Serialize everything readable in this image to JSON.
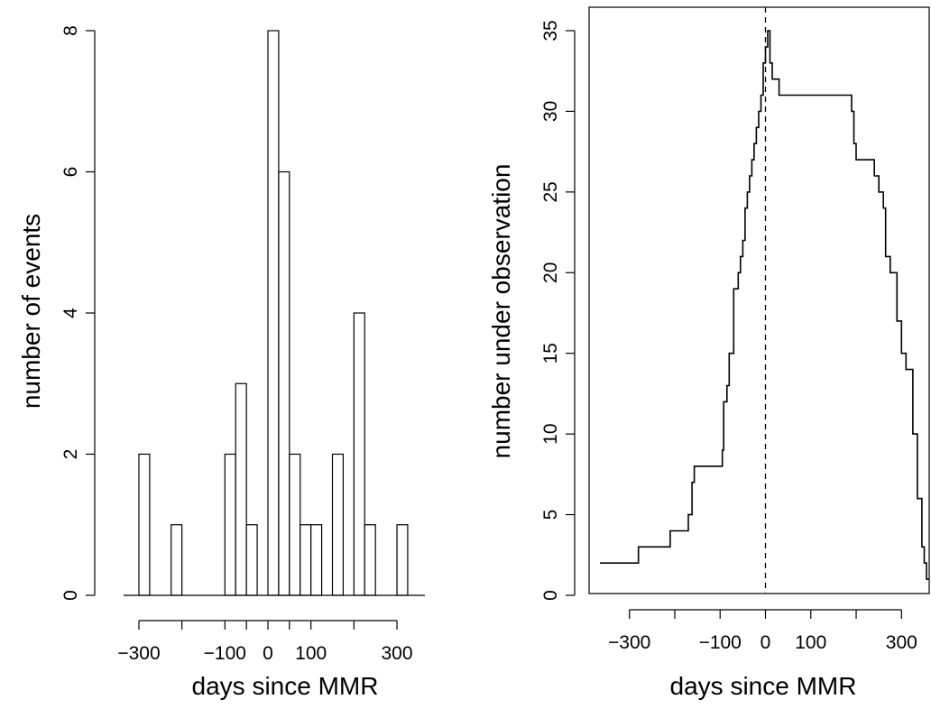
{
  "chart_data": [
    {
      "type": "bar",
      "title": "",
      "xlabel": "days since MMR",
      "ylabel": "number of events",
      "xlim": [
        -365,
        365
      ],
      "ylim": [
        0,
        8
      ],
      "xticks": [
        -300,
        -100,
        0,
        100,
        300
      ],
      "xtick_labels": [
        "−300",
        "−100",
        "0",
        "100",
        "300"
      ],
      "yticks": [
        0,
        2,
        4,
        6,
        8
      ],
      "ytick_labels": [
        "0",
        "2",
        "4",
        "6",
        "8"
      ],
      "bin_width": 25,
      "bin_starts": [
        -300,
        -275,
        -250,
        -225,
        -200,
        -175,
        -150,
        -125,
        -100,
        -75,
        -50,
        -25,
        0,
        25,
        50,
        75,
        100,
        125,
        150,
        175,
        200,
        225,
        250,
        275,
        300
      ],
      "values": [
        2,
        0,
        0,
        1,
        0,
        0,
        0,
        0,
        2,
        3,
        1,
        0,
        8,
        6,
        2,
        1,
        1,
        0,
        2,
        0,
        4,
        1,
        0,
        0,
        1
      ],
      "grid": false,
      "legend": "none"
    },
    {
      "type": "line",
      "step": true,
      "title": "",
      "xlabel": "days since MMR",
      "ylabel": "number under observation",
      "xlim": [
        -365,
        365
      ],
      "ylim": [
        0,
        35
      ],
      "xticks": [
        -300,
        -200,
        -100,
        0,
        100,
        200,
        300
      ],
      "xtick_labels": [
        "−300",
        "",
        "−100",
        "0",
        "100",
        "",
        "300"
      ],
      "yticks": [
        0,
        5,
        10,
        15,
        20,
        25,
        30,
        35
      ],
      "ytick_labels": [
        "0",
        "5",
        "10",
        "15",
        "20",
        "25",
        "30",
        "35"
      ],
      "reference_line": {
        "x": 0,
        "style": "dashed"
      },
      "series": [
        {
          "x": [
            -365,
            -280,
            -280,
            -210,
            -210,
            -170,
            -170,
            -162,
            -162,
            -157,
            -157,
            -95,
            -95,
            -92,
            -92,
            -85,
            -85,
            -80,
            -80,
            -70,
            -70,
            -60,
            -60,
            -55,
            -55,
            -50,
            -50,
            -45,
            -45,
            -40,
            -40,
            -35,
            -35,
            -30,
            -30,
            -25,
            -25,
            -20,
            -20,
            -15,
            -15,
            -10,
            -10,
            -5,
            -5,
            0,
            0,
            5,
            5,
            10,
            10,
            15,
            15,
            30,
            30,
            60,
            60,
            190,
            190,
            195,
            195,
            200,
            200,
            240,
            240,
            250,
            250,
            260,
            260,
            265,
            265,
            275,
            275,
            290,
            290,
            300,
            300,
            310,
            310,
            325,
            325,
            335,
            335,
            345,
            345,
            350,
            350,
            355,
            355,
            360
          ],
          "y": [
            2,
            2,
            3,
            3,
            4,
            4,
            5,
            5,
            7,
            7,
            8,
            8,
            9,
            9,
            12,
            12,
            13,
            13,
            15,
            15,
            19,
            19,
            20,
            20,
            21,
            21,
            22,
            22,
            24,
            24,
            25,
            25,
            26,
            26,
            27,
            27,
            28,
            28,
            29,
            29,
            30,
            30,
            31,
            31,
            33,
            33,
            34,
            34,
            35,
            35,
            33,
            33,
            32,
            32,
            31,
            31,
            31,
            31,
            30,
            30,
            28,
            28,
            27,
            27,
            26,
            26,
            25,
            25,
            24,
            24,
            21,
            21,
            20,
            20,
            17,
            17,
            15,
            15,
            14,
            14,
            10,
            10,
            6,
            6,
            3,
            3,
            2,
            2,
            1,
            1
          ]
        }
      ],
      "grid": false,
      "legend": "none"
    }
  ]
}
